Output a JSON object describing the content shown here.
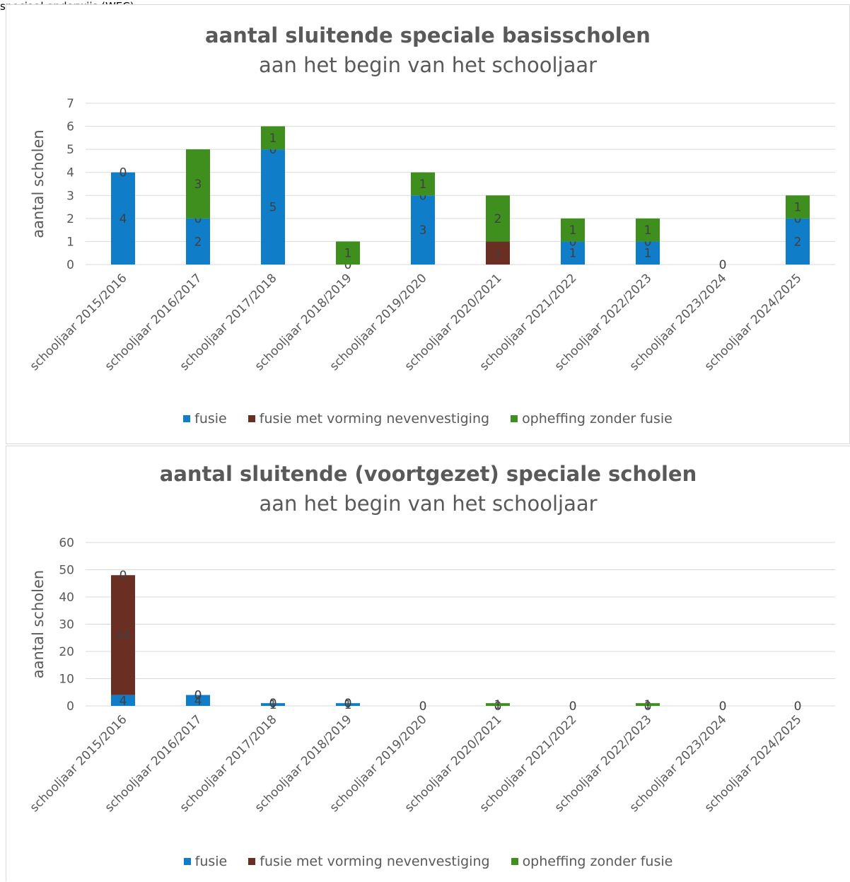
{
  "page": {
    "top_text": "speciaal onderwijs (WEC)"
  },
  "legend": {
    "items": [
      {
        "label": "fusie",
        "color": "#0f7dc8"
      },
      {
        "label": "fusie met vorming nevenvestiging",
        "color": "#6b2e22"
      },
      {
        "label": "opheffing zonder fusie",
        "color": "#3f8f1e"
      }
    ]
  },
  "chart_data": [
    {
      "type": "bar",
      "stacked": true,
      "title": "aantal sluitende speciale basisscholen",
      "subtitle": "aan het begin van het schooljaar",
      "xlabel": "",
      "ylabel": "aantal scholen",
      "ylim": [
        0,
        7
      ],
      "yticks": [
        0,
        1,
        2,
        3,
        4,
        5,
        6,
        7
      ],
      "grid": true,
      "legend_position": "bottom",
      "categories": [
        "schooljaar 2015/2016",
        "schooljaar 2016/2017",
        "schooljaar 2017/2018",
        "schooljaar 2018/2019",
        "schooljaar 2019/2020",
        "schooljaar 2020/2021",
        "schooljaar 2021/2022",
        "schooljaar 2022/2023",
        "schooljaar 2023/2024",
        "schooljaar 2024/2025"
      ],
      "series": [
        {
          "name": "fusie",
          "color": "#0f7dc8",
          "values": [
            4,
            2,
            5,
            0,
            3,
            0,
            1,
            1,
            0,
            2
          ]
        },
        {
          "name": "fusie met vorming nevenvestiging",
          "color": "#6b2e22",
          "values": [
            0,
            0,
            0,
            0,
            0,
            1,
            0,
            0,
            0,
            0
          ]
        },
        {
          "name": "opheffing zonder fusie",
          "color": "#3f8f1e",
          "values": [
            0,
            3,
            1,
            1,
            1,
            2,
            1,
            1,
            0,
            1
          ]
        }
      ],
      "data_labels": [
        {
          "series": 0,
          "labels": [
            "4",
            "2",
            "5",
            "",
            "3",
            "",
            "1",
            "1",
            "",
            "2"
          ]
        },
        {
          "series": 1,
          "labels": [
            "0",
            "0",
            "0",
            "0",
            "0",
            "1",
            "0",
            "0",
            "0",
            "0"
          ]
        },
        {
          "series": 2,
          "labels": [
            "",
            "3",
            "1",
            "1",
            "1",
            "2",
            "1",
            "1",
            "",
            "1"
          ]
        }
      ]
    },
    {
      "type": "bar",
      "stacked": true,
      "title": "aantal sluitende (voortgezet) speciale scholen",
      "subtitle": "aan het begin van het schooljaar",
      "xlabel": "",
      "ylabel": "aantal scholen",
      "ylim": [
        0,
        60
      ],
      "yticks": [
        0,
        10,
        20,
        30,
        40,
        50,
        60
      ],
      "grid": true,
      "legend_position": "bottom",
      "categories": [
        "schooljaar 2015/2016",
        "schooljaar 2016/2017",
        "schooljaar 2017/2018",
        "schooljaar 2018/2019",
        "schooljaar 2019/2020",
        "schooljaar 2020/2021",
        "schooljaar 2021/2022",
        "schooljaar 2022/2023",
        "schooljaar 2023/2024",
        "schooljaar 2024/2025"
      ],
      "series": [
        {
          "name": "fusie",
          "color": "#0f7dc8",
          "values": [
            4,
            4,
            1,
            1,
            0,
            0,
            0,
            0,
            0,
            0
          ]
        },
        {
          "name": "fusie met vorming nevenvestiging",
          "color": "#6b2e22",
          "values": [
            44,
            0,
            0,
            0,
            0,
            0,
            0,
            0,
            0,
            0
          ]
        },
        {
          "name": "opheffing zonder fusie",
          "color": "#3f8f1e",
          "values": [
            0,
            0,
            0,
            0,
            0,
            1,
            0,
            1,
            0,
            0
          ]
        }
      ],
      "data_labels": [
        {
          "series": 0,
          "labels": [
            "4",
            "4",
            "1",
            "1",
            "",
            "",
            "",
            "",
            "",
            ""
          ]
        },
        {
          "series": 1,
          "labels": [
            "44",
            "0",
            "0",
            "0",
            "0",
            "0",
            "0",
            "0",
            "0",
            "0"
          ]
        },
        {
          "series": 2,
          "labels": [
            "0",
            "0",
            "0",
            "0",
            "",
            "1",
            "",
            "1",
            "",
            ""
          ]
        }
      ]
    }
  ]
}
